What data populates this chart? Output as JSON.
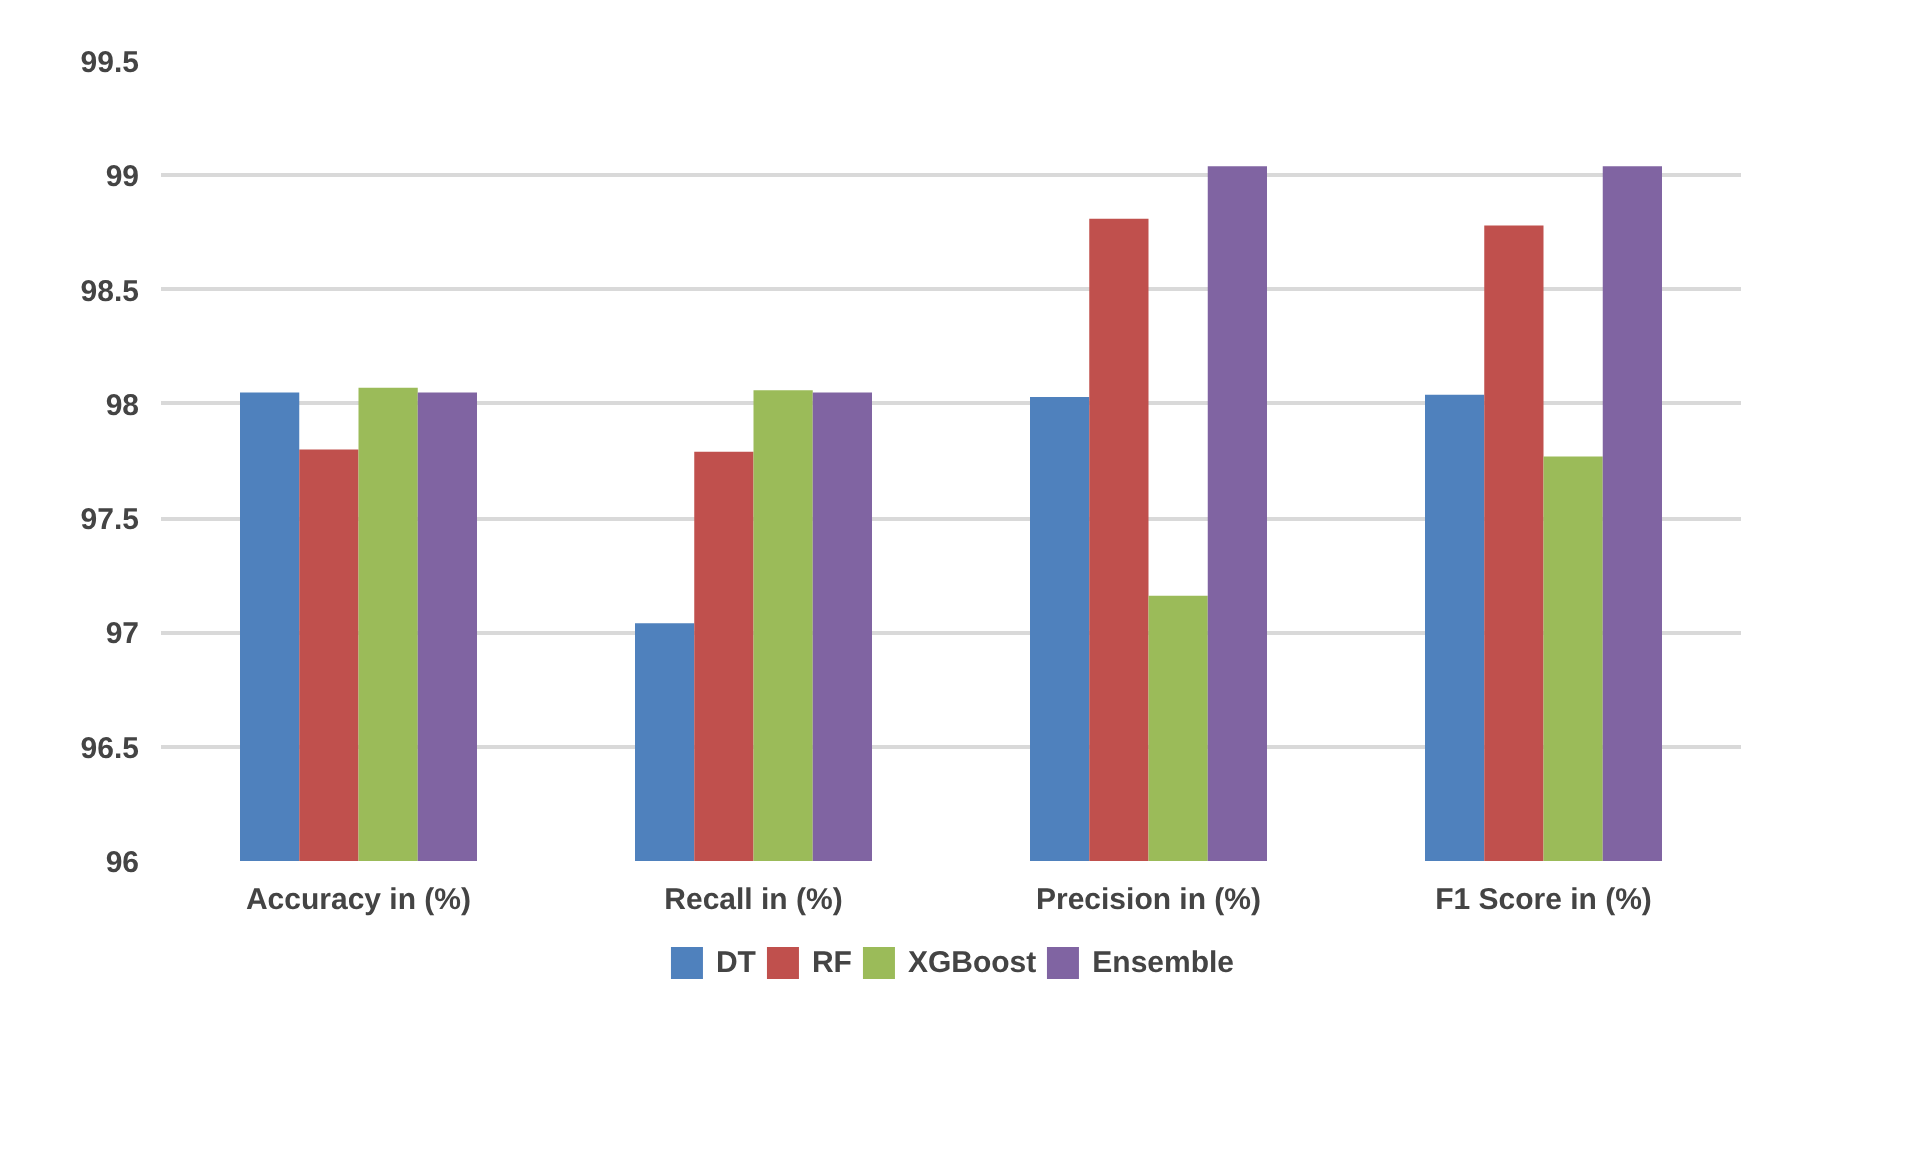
{
  "chart_data": {
    "type": "bar",
    "categories": [
      "Accuracy in (%)",
      "Recall in (%)",
      "Precision in (%)",
      "F1 Score in (%)"
    ],
    "series": [
      {
        "name": "DT",
        "color": "#4f81bd",
        "values": [
          98.05,
          97.04,
          98.03,
          98.04
        ]
      },
      {
        "name": "RF",
        "color": "#c0504d",
        "values": [
          97.8,
          97.79,
          98.81,
          98.78
        ]
      },
      {
        "name": "XGBoost",
        "color": "#9bbb59",
        "values": [
          98.07,
          98.06,
          97.16,
          97.77
        ]
      },
      {
        "name": "Ensemble",
        "color": "#8064a2",
        "values": [
          98.05,
          98.05,
          99.04,
          99.04
        ]
      }
    ],
    "ylim": [
      96,
      99.5
    ],
    "yticks": [
      96,
      96.5,
      97,
      97.5,
      98,
      98.5,
      99,
      99.5
    ],
    "grid": "y",
    "legend": "bottom"
  }
}
